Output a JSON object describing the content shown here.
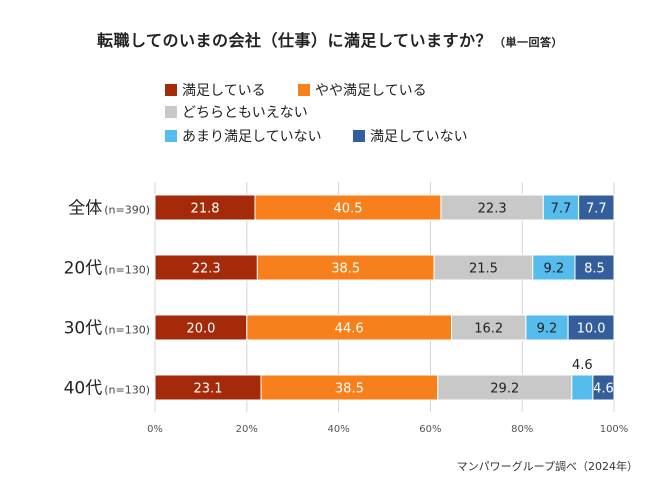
{
  "title": "転職してのいまの会社（仕事）に満足していますか？",
  "title_note": "（単一回答）",
  "credit": "マンパワーグループ調べ（2024年）",
  "colors": {
    "satisfied": "#a52a0a",
    "somewhat_satisfied": "#f8801c",
    "neither": "#c8c8c8",
    "not_very_satisfied": "#56bced",
    "not_satisfied": "#345d9c",
    "grid": "#d4d4d4"
  },
  "chart_data": {
    "type": "bar",
    "orientation": "horizontal",
    "stacked": true,
    "title": "転職してのいまの会社（仕事）に満足していますか？（単一回答）",
    "categories": [
      {
        "label": "全体",
        "n": "(n=390)"
      },
      {
        "label": "20代",
        "n": "(n=130)"
      },
      {
        "label": "30代",
        "n": "(n=130)"
      },
      {
        "label": "40代",
        "n": "(n=130)"
      }
    ],
    "series": [
      {
        "name": "満足している",
        "color_key": "satisfied",
        "values": [
          21.8,
          22.3,
          20.0,
          23.1
        ]
      },
      {
        "name": "やや満足している",
        "color_key": "somewhat_satisfied",
        "values": [
          40.5,
          38.5,
          44.6,
          38.5
        ]
      },
      {
        "name": "どちらともいえない",
        "color_key": "neither",
        "values": [
          22.3,
          21.5,
          16.2,
          29.2
        ]
      },
      {
        "name": "あまり満足していない",
        "color_key": "not_very_satisfied",
        "values": [
          7.7,
          9.2,
          9.2,
          4.6
        ]
      },
      {
        "name": "満足していない",
        "color_key": "not_satisfied",
        "values": [
          7.7,
          8.5,
          10.0,
          4.6
        ]
      }
    ],
    "xlim": [
      0,
      100
    ],
    "xticks": [
      "0%",
      "20%",
      "40%",
      "60%",
      "80%",
      "100%"
    ],
    "grid": true,
    "legend": "top",
    "xlabel": "",
    "ylabel": ""
  }
}
